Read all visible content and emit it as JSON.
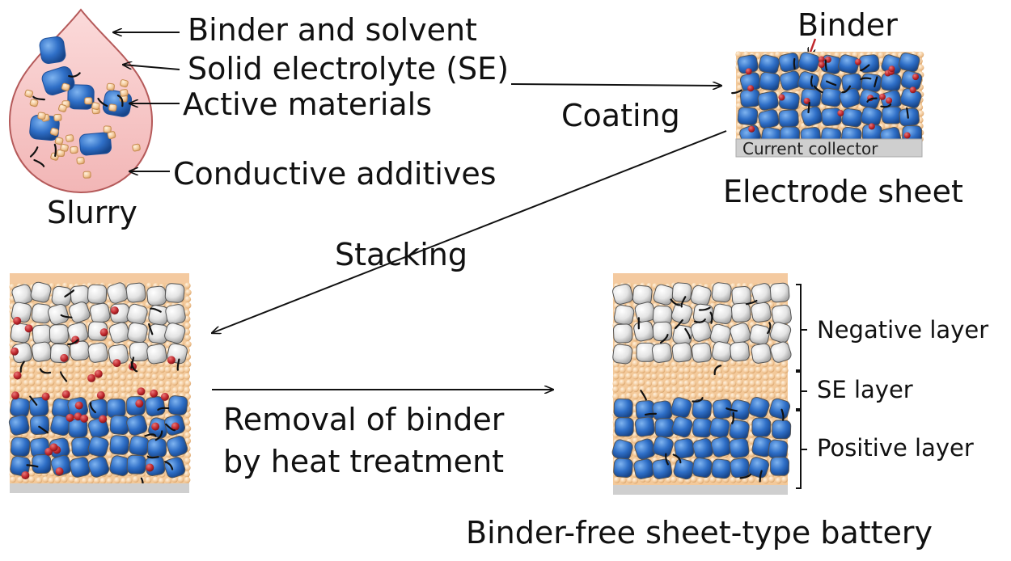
{
  "labels": {
    "binder_solvent": "Binder and solvent",
    "solid_electrolyte": "Solid electrolyte (SE)",
    "active_materials": "Active materials",
    "conductive_additives": "Conductive additives",
    "slurry": "Slurry",
    "binder": "Binder",
    "coating": "Coating",
    "current_collector": "Current collector",
    "electrode_sheet": "Electrode sheet",
    "stacking": "Stacking",
    "removal_line1": "Removal of binder",
    "removal_line2": "by heat treatment",
    "negative_layer": "Negative layer",
    "se_layer": "SE layer",
    "positive_layer": "Positive layer",
    "final_title": "Binder-free sheet-type battery"
  },
  "colors": {
    "active_material": "#2f6fc7",
    "solid_electrolyte": "#f3c99a",
    "binder": "#c0282d",
    "conductive_additive": "#111111",
    "negative_material": "#e2e2e2",
    "slurry_fill": "#f7c4c4",
    "current_collector": "#c8c8c8"
  }
}
